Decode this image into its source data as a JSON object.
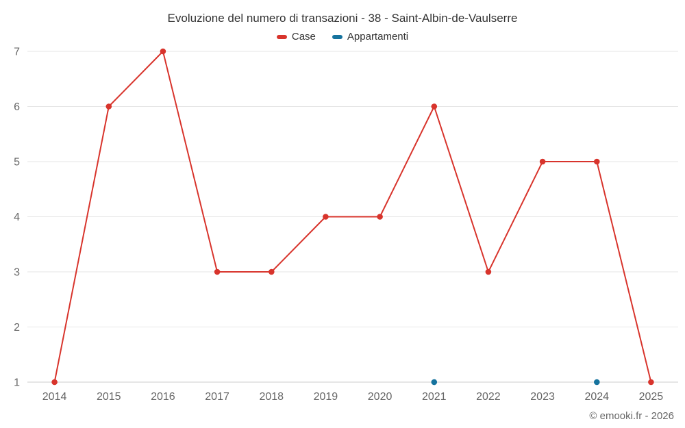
{
  "chart_data": {
    "type": "line",
    "title": "Evoluzione del numero di transazioni - 38 - Saint-Albin-de-Vaulserre",
    "categories": [
      "2014",
      "2015",
      "2016",
      "2017",
      "2018",
      "2019",
      "2020",
      "2021",
      "2022",
      "2023",
      "2024",
      "2025"
    ],
    "series": [
      {
        "name": "Case",
        "color": "#d8342c",
        "values": [
          1,
          6,
          7,
          3,
          3,
          4,
          4,
          6,
          3,
          5,
          5,
          1
        ]
      },
      {
        "name": "Appartamenti",
        "color": "#16739e",
        "values": [
          null,
          null,
          null,
          null,
          null,
          null,
          null,
          1,
          null,
          null,
          1,
          null
        ]
      }
    ],
    "ylim": [
      1,
      7
    ],
    "yticks": [
      1,
      2,
      3,
      4,
      5,
      6,
      7
    ],
    "xlabel": "",
    "ylabel": "",
    "grid": "on",
    "legend_position": "top"
  },
  "footer": {
    "copyright": "© emooki.fr - 2026"
  }
}
